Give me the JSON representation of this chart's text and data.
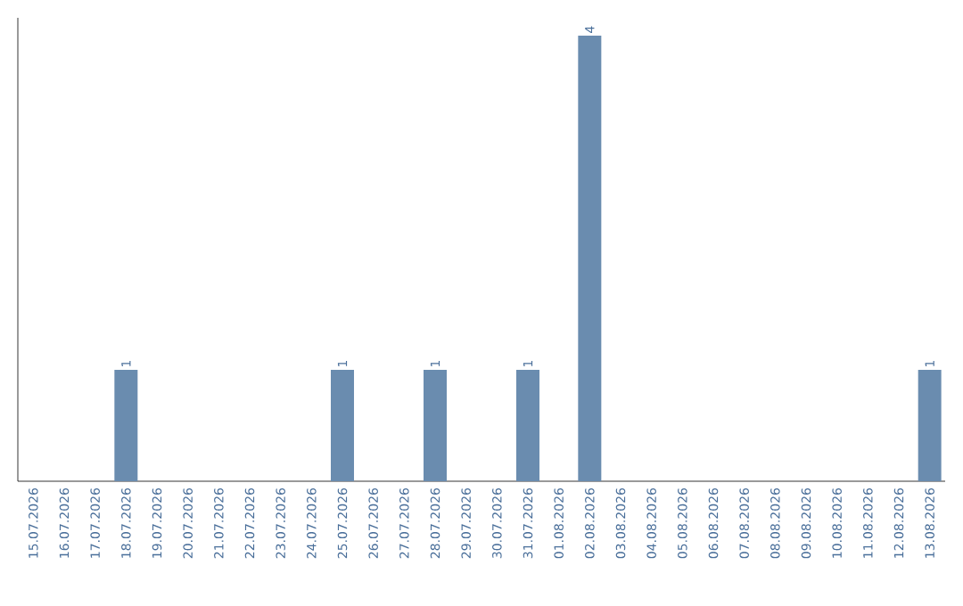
{
  "chart_data": {
    "type": "bar",
    "categories": [
      "15.07.2026",
      "16.07.2026",
      "17.07.2026",
      "18.07.2026",
      "19.07.2026",
      "20.07.2026",
      "21.07.2026",
      "22.07.2026",
      "23.07.2026",
      "24.07.2026",
      "25.07.2026",
      "26.07.2026",
      "27.07.2026",
      "28.07.2026",
      "29.07.2026",
      "30.07.2026",
      "31.07.2026",
      "01.08.2026",
      "02.08.2026",
      "03.08.2026",
      "04.08.2026",
      "05.08.2026",
      "06.08.2026",
      "07.08.2026",
      "08.08.2026",
      "09.08.2026",
      "10.08.2026",
      "11.08.2026",
      "12.08.2026",
      "13.08.2026"
    ],
    "values": [
      0,
      0,
      0,
      1,
      0,
      0,
      0,
      0,
      0,
      0,
      1,
      0,
      0,
      1,
      0,
      0,
      1,
      0,
      4,
      0,
      0,
      0,
      0,
      0,
      0,
      0,
      0,
      0,
      0,
      1
    ],
    "value_labels": [
      null,
      null,
      null,
      "1",
      null,
      null,
      null,
      null,
      null,
      null,
      "1",
      null,
      null,
      "1",
      null,
      null,
      "1",
      null,
      "4",
      null,
      null,
      null,
      null,
      null,
      null,
      null,
      null,
      null,
      null,
      "1"
    ],
    "color": "#6a8caf"
  }
}
